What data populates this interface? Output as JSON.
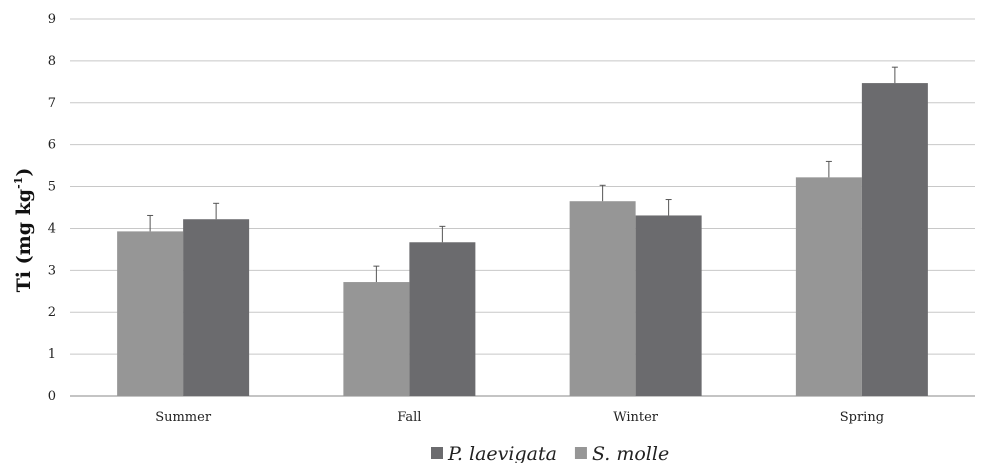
{
  "chart_data": {
    "type": "bar",
    "title": "",
    "xlabel": "",
    "ylabel": "Ti (mg kg",
    "ylabel_superscript": "-1",
    "ylabel_close": ")",
    "categories": [
      "Summer",
      "Fall",
      "Winter",
      "Spring"
    ],
    "ylim": [
      0,
      9
    ],
    "yticks": [
      "0",
      "1",
      "2",
      "3",
      "4",
      "5",
      "6",
      "7",
      "8",
      "9"
    ],
    "grid": true,
    "legend_position": "bottom",
    "series": [
      {
        "name": "S. molle",
        "color": "#969696",
        "values": [
          3.93,
          2.72,
          4.65,
          5.22
        ],
        "errors": [
          0.38,
          0.38,
          0.38,
          0.38
        ]
      },
      {
        "name": "P. laevigata",
        "color": "#6b6b6e",
        "values": [
          4.22,
          3.67,
          4.31,
          7.47
        ],
        "errors": [
          0.38,
          0.38,
          0.38,
          0.38
        ]
      }
    ],
    "legend_order": [
      "P. laevigata",
      "S. molle"
    ]
  }
}
